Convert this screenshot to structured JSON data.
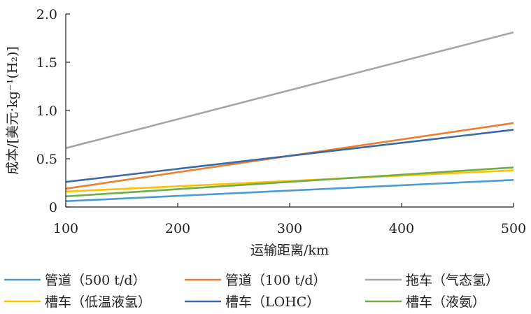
{
  "chart_data": {
    "type": "line",
    "xlabel": "运输距离/km",
    "ylabel": "成本/[美元·kg⁻¹(H₂)]",
    "xlim": [
      100,
      500
    ],
    "ylim": [
      0,
      2.0
    ],
    "xticks": [
      "100",
      "200",
      "300",
      "400",
      "500"
    ],
    "yticks": [
      "0",
      "0.5",
      "1.0",
      "1.5",
      "2.0"
    ],
    "grid": false,
    "legend_position": "bottom",
    "series": [
      {
        "name": "管道（500 t/d）",
        "color": "#4a9bd0",
        "x": [
          100,
          500
        ],
        "y": [
          0.06,
          0.28
        ]
      },
      {
        "name": "管道（100 t/d）",
        "color": "#ed7d31",
        "x": [
          100,
          500
        ],
        "y": [
          0.19,
          0.87
        ]
      },
      {
        "name": "拖车（气态氢）",
        "color": "#a5a5a5",
        "x": [
          100,
          500
        ],
        "y": [
          0.61,
          1.81
        ]
      },
      {
        "name": "槽车（低温液氢）",
        "color": "#ffc000",
        "x": [
          100,
          500
        ],
        "y": [
          0.16,
          0.38
        ]
      },
      {
        "name": "槽车（LOHC）",
        "color": "#3c68a8",
        "x": [
          100,
          500
        ],
        "y": [
          0.26,
          0.8
        ]
      },
      {
        "name": "槽车（液氨）",
        "color": "#70ad47",
        "x": [
          100,
          500
        ],
        "y": [
          0.11,
          0.41
        ]
      }
    ]
  }
}
